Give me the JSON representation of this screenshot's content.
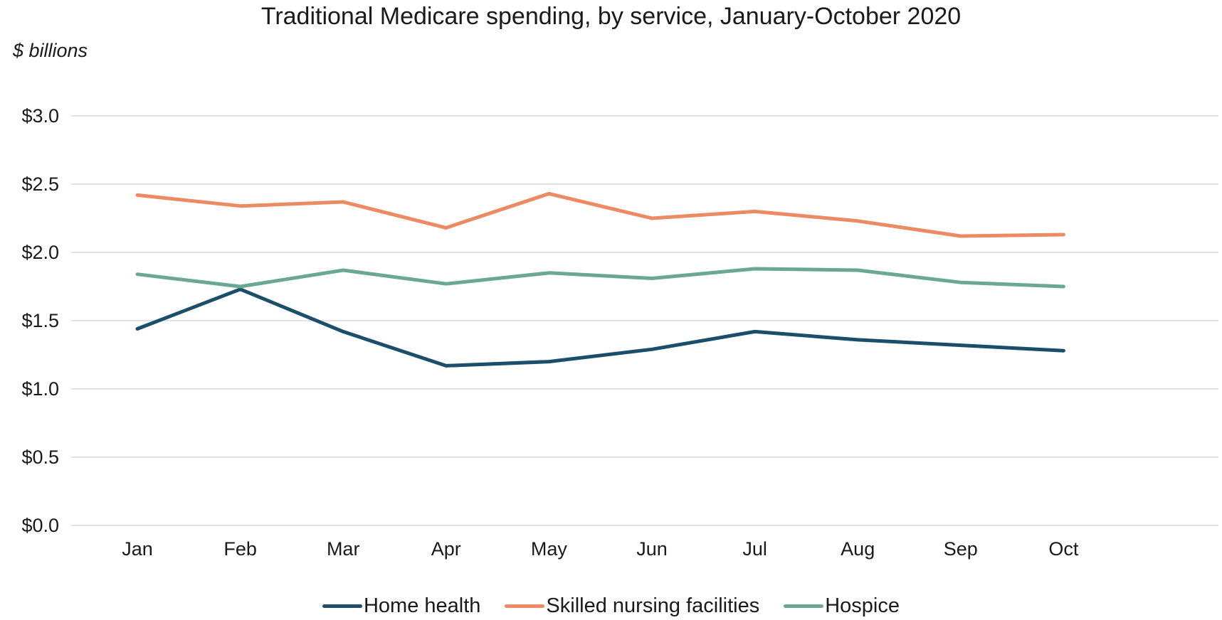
{
  "chart_data": {
    "type": "line",
    "title": "Traditional Medicare spending, by service, January-October 2020",
    "unit_label": "$ billions",
    "xlabel": "",
    "ylabel": "",
    "categories": [
      "Jan",
      "Feb",
      "Mar",
      "Apr",
      "May",
      "Jun",
      "Jul",
      "Aug",
      "Sep",
      "Oct"
    ],
    "ylim": [
      0,
      3.0
    ],
    "yticks": [
      {
        "value": 0.0,
        "label": "$0.0"
      },
      {
        "value": 0.5,
        "label": "$0.5"
      },
      {
        "value": 1.0,
        "label": "$1.0"
      },
      {
        "value": 1.5,
        "label": "$1.5"
      },
      {
        "value": 2.0,
        "label": "$2.0"
      },
      {
        "value": 2.5,
        "label": "$2.5"
      },
      {
        "value": 3.0,
        "label": "$3.0"
      }
    ],
    "grid": true,
    "legend_position": "bottom",
    "series": [
      {
        "name": "Home health",
        "color": "#1b4e6b",
        "values": [
          1.44,
          1.73,
          1.42,
          1.17,
          1.2,
          1.29,
          1.42,
          1.36,
          1.32,
          1.28
        ]
      },
      {
        "name": "Skilled nursing facilities",
        "color": "#ec8a63",
        "values": [
          2.42,
          2.34,
          2.37,
          2.18,
          2.43,
          2.25,
          2.3,
          2.23,
          2.12,
          2.13
        ]
      },
      {
        "name": "Hospice",
        "color": "#6aa892",
        "values": [
          1.84,
          1.75,
          1.87,
          1.77,
          1.85,
          1.81,
          1.88,
          1.87,
          1.78,
          1.75
        ]
      }
    ]
  }
}
